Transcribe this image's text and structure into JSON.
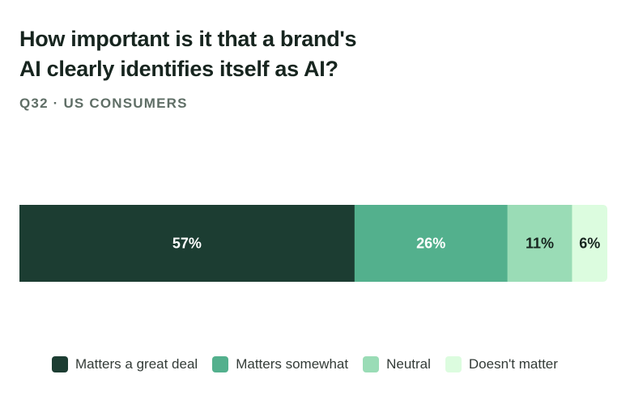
{
  "title_lines": [
    "How important is it that a brand's",
    "AI clearly identifies itself as AI?"
  ],
  "subtitle": "Q32 · US CONSUMERS",
  "chart_data": {
    "type": "bar",
    "orientation": "horizontal-stacked-100",
    "categories": [
      "Q32"
    ],
    "series": [
      {
        "name": "Matters a great deal",
        "values": [
          57
        ],
        "label": "57%",
        "color": "#1c3d32",
        "label_color": "#ffffff"
      },
      {
        "name": "Matters somewhat",
        "values": [
          26
        ],
        "label": "26%",
        "color": "#53b08d",
        "label_color": "#ffffff"
      },
      {
        "name": "Neutral",
        "values": [
          11
        ],
        "label": "11%",
        "color": "#9adcb6",
        "label_color": "#17251f"
      },
      {
        "name": "Doesn't matter",
        "values": [
          6
        ],
        "label": "6%",
        "color": "#dcfcdf",
        "label_color": "#17251f"
      }
    ],
    "xlim": [
      0,
      100
    ],
    "grid": false,
    "legend_position": "bottom"
  }
}
